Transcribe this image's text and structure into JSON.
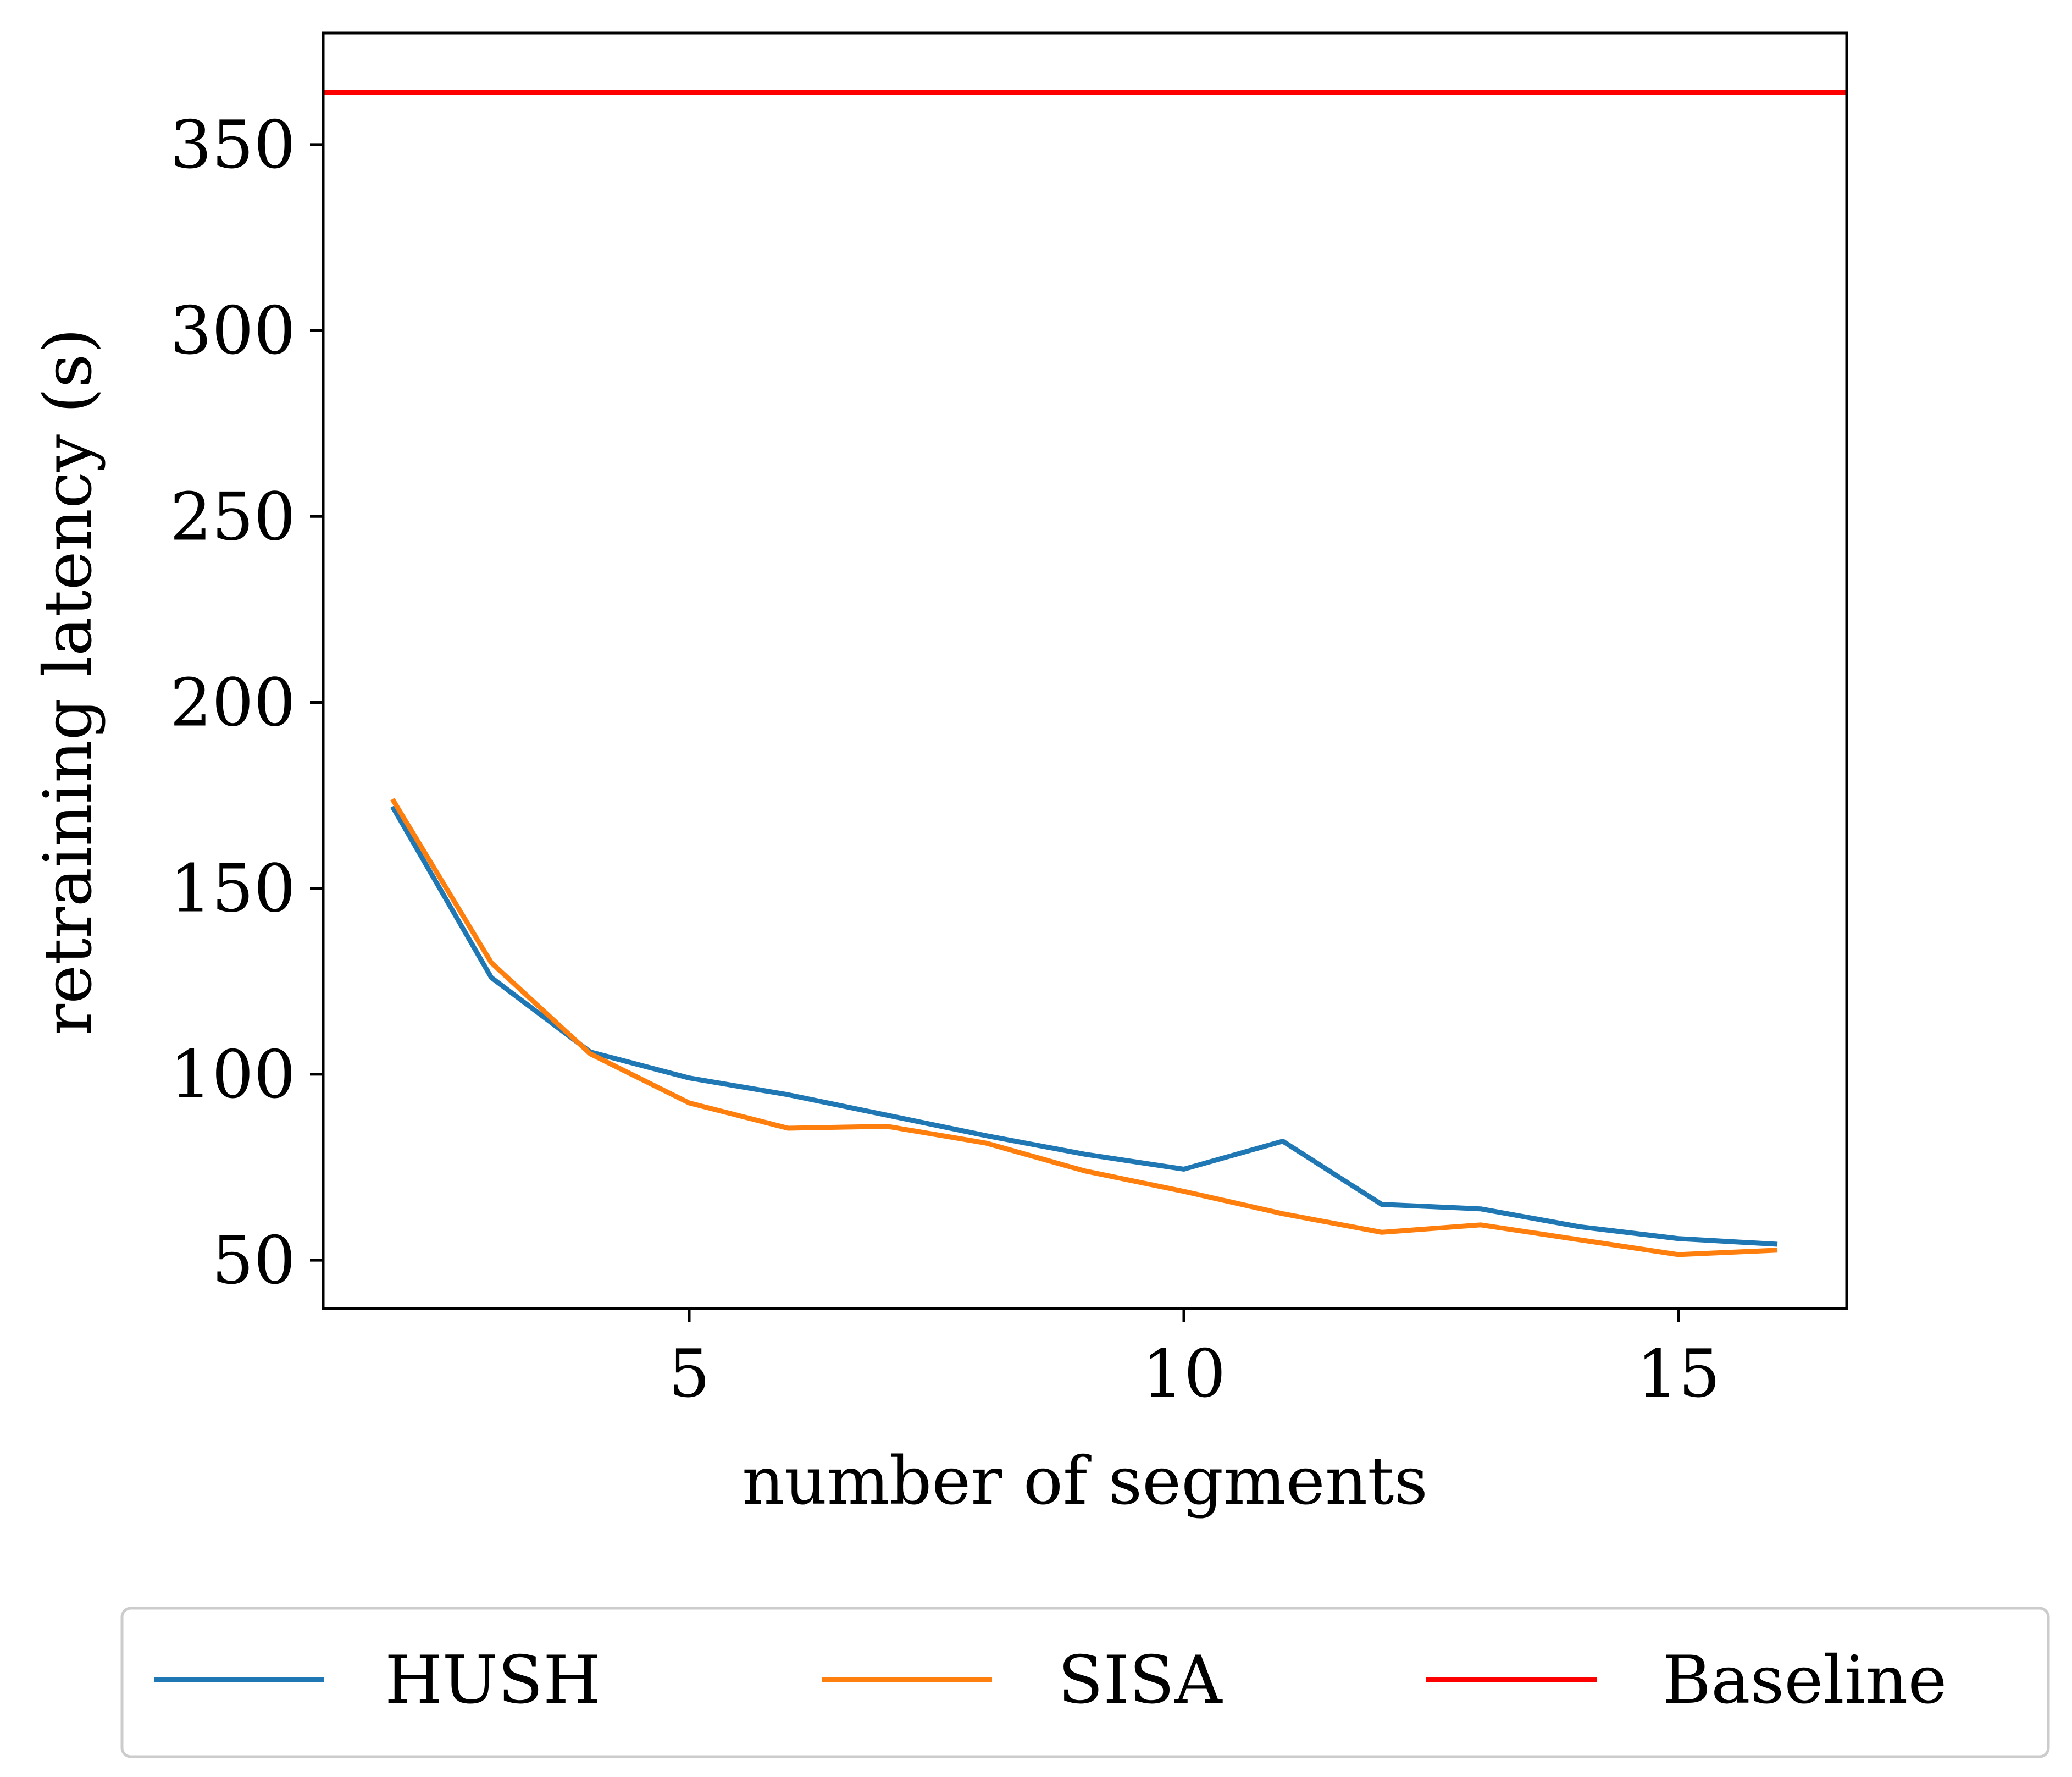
{
  "chart_data": {
    "type": "line",
    "title": "",
    "xlabel": "number of segments",
    "ylabel": "retraining latency (s)",
    "xlim": [
      1.3,
      16.7
    ],
    "ylim": [
      37,
      380
    ],
    "xticks": [
      5,
      10,
      15
    ],
    "yticks": [
      50,
      100,
      150,
      200,
      250,
      300,
      350
    ],
    "grid": false,
    "legend_position": "bottom-outside",
    "series": [
      {
        "name": "HUSH",
        "color": "#1f77b4",
        "x": [
          2,
          3,
          4,
          5,
          6,
          7,
          8,
          9,
          10,
          11,
          12,
          13,
          14,
          15,
          16
        ],
        "y": [
          172,
          126,
          106,
          99,
          94.5,
          89,
          83.5,
          78.5,
          74.5,
          82,
          65,
          63.8,
          59,
          55.8,
          54.3
        ]
      },
      {
        "name": "SISA",
        "color": "#ff7f0e",
        "x": [
          2,
          3,
          4,
          5,
          6,
          7,
          8,
          9,
          10,
          11,
          12,
          13,
          14,
          15,
          16
        ],
        "y": [
          174,
          130,
          105.5,
          92.3,
          85.5,
          86,
          81.5,
          74,
          68.5,
          62.5,
          57.5,
          59.5,
          55.5,
          51.5,
          52.7
        ]
      },
      {
        "name": "Baseline",
        "color": "#ff0000",
        "type": "hline",
        "y": 364
      }
    ]
  }
}
